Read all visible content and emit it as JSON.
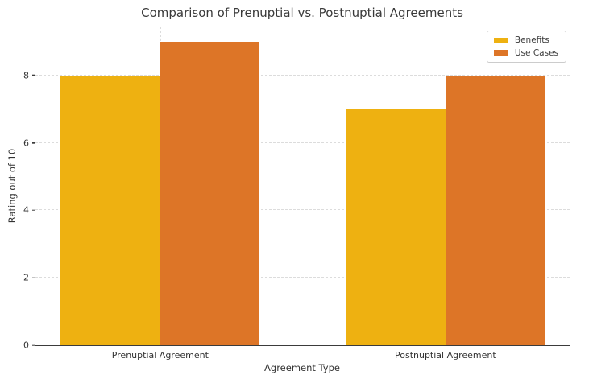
{
  "chart_data": {
    "type": "bar",
    "title": "Comparison of Prenuptial vs. Postnuptial Agreements",
    "xlabel": "Agreement Type",
    "ylabel": "Rating out of 10",
    "categories": [
      "Prenuptial Agreement",
      "Postnuptial Agreement"
    ],
    "series": [
      {
        "name": "Benefits",
        "values": [
          8,
          7
        ],
        "color": "#EEB111"
      },
      {
        "name": "Use Cases",
        "values": [
          9,
          8
        ],
        "color": "#DD7527"
      }
    ],
    "ylim": [
      0,
      9.45
    ],
    "yticks": [
      0,
      2,
      4,
      6,
      8
    ],
    "grid": "dashed, horizontal at yticks and vertical at category centers",
    "legend_position": "upper right"
  },
  "colors": {
    "background": "#FFFFFF",
    "benefits": "#EEB111",
    "use_cases": "#DD7527",
    "grid": "#DCDCDC",
    "spine": "#3B3B3B",
    "text": "#333333",
    "legend_border": "#CCCCCC"
  }
}
